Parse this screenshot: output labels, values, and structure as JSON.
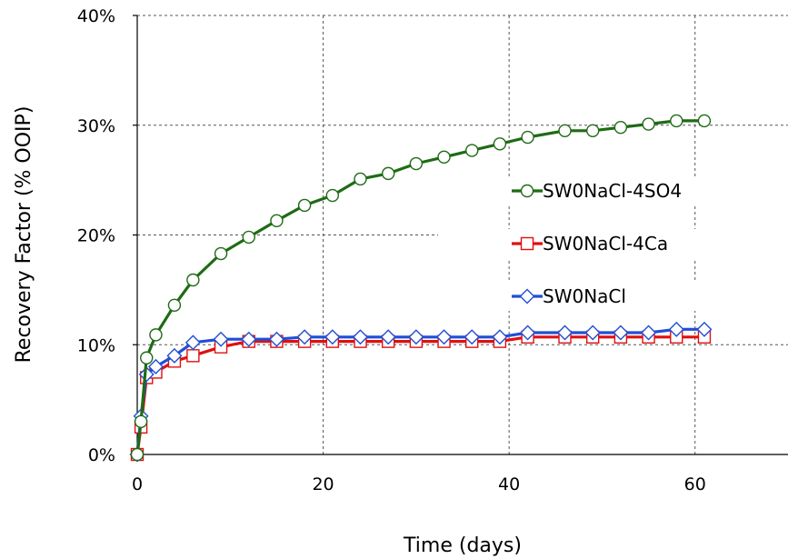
{
  "chart_data": {
    "type": "line",
    "title": "",
    "xlabel": "Time (days)",
    "ylabel": "Recovery Factor (% OOIP)",
    "xlim": [
      0,
      70
    ],
    "ylim": [
      0,
      0.4
    ],
    "x_ticks": [
      0,
      20,
      40,
      60
    ],
    "x_tick_labels": [
      "0",
      "20",
      "40",
      "60"
    ],
    "y_ticks": [
      0,
      0.1,
      0.2,
      0.3,
      0.4
    ],
    "y_tick_labels": [
      "0%",
      "10%",
      "20%",
      "30%",
      "40%"
    ],
    "grid": true,
    "legend_position": "right-inside",
    "series": [
      {
        "name": "SW0NaCl-4SO4",
        "color": "#1e6b14",
        "marker": "circle",
        "x": [
          0,
          0.4,
          1,
          2,
          4,
          6,
          9,
          12,
          15,
          18,
          21,
          24,
          27,
          30,
          33,
          36,
          39,
          42,
          46,
          49,
          52,
          55,
          58,
          61
        ],
        "y": [
          0,
          0.03,
          0.088,
          0.109,
          0.136,
          0.159,
          0.183,
          0.198,
          0.213,
          0.227,
          0.236,
          0.251,
          0.256,
          0.265,
          0.271,
          0.277,
          0.283,
          0.289,
          0.295,
          0.295,
          0.298,
          0.301,
          0.304,
          0.304
        ]
      },
      {
        "name": "SW0NaCl-4Ca",
        "color": "#e01010",
        "marker": "square",
        "x": [
          0,
          0.4,
          1,
          2,
          4,
          6,
          9,
          12,
          15,
          18,
          21,
          24,
          27,
          30,
          33,
          36,
          39,
          42,
          46,
          49,
          52,
          55,
          58,
          61
        ],
        "y": [
          0,
          0.025,
          0.07,
          0.075,
          0.085,
          0.09,
          0.098,
          0.103,
          0.103,
          0.103,
          0.103,
          0.103,
          0.103,
          0.103,
          0.103,
          0.103,
          0.103,
          0.107,
          0.107,
          0.107,
          0.107,
          0.107,
          0.107,
          0.107
        ]
      },
      {
        "name": "SW0NaCl",
        "color": "#1f4fd6",
        "marker": "diamond",
        "x": [
          0,
          0.4,
          1,
          2,
          4,
          6,
          9,
          12,
          15,
          18,
          21,
          24,
          27,
          30,
          33,
          36,
          39,
          42,
          46,
          49,
          52,
          55,
          58,
          61
        ],
        "y": [
          0,
          0.035,
          0.073,
          0.08,
          0.09,
          0.102,
          0.105,
          0.105,
          0.105,
          0.107,
          0.107,
          0.107,
          0.107,
          0.107,
          0.107,
          0.107,
          0.107,
          0.111,
          0.111,
          0.111,
          0.111,
          0.111,
          0.114,
          0.114
        ]
      }
    ]
  }
}
